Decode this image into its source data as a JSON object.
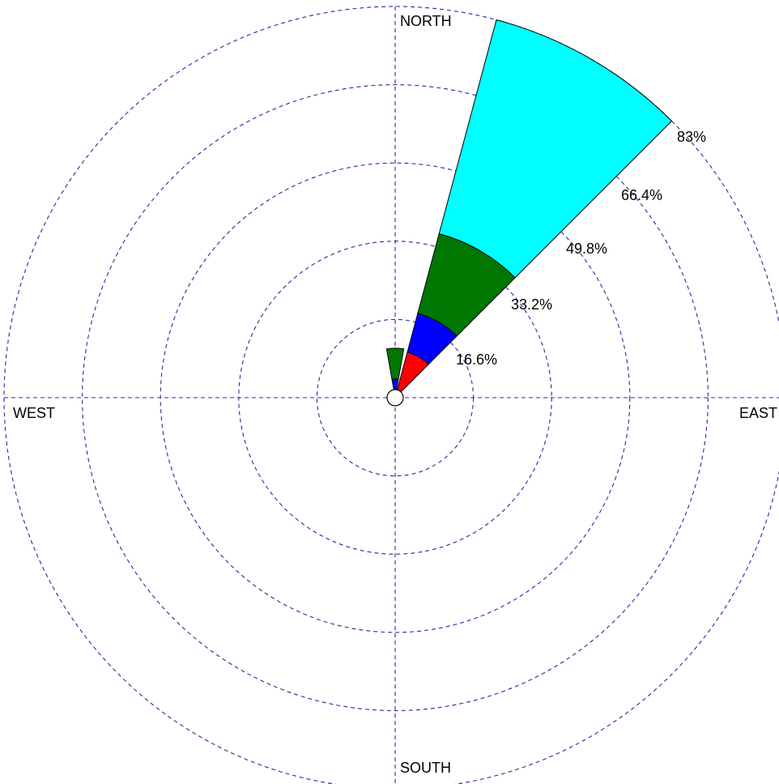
{
  "chart_data": {
    "type": "windrose",
    "title": "",
    "max_percent": 83,
    "ring_labels": [
      "16.6%",
      "33.2%",
      "49.8%",
      "66.4%",
      "83%"
    ],
    "ring_values": [
      16.6,
      33.2,
      49.8,
      66.4,
      83
    ],
    "direction_labels": {
      "north": "NORTH",
      "east": "EAST",
      "south": "SOUTH",
      "west": "WEST"
    },
    "grid": true,
    "sectors": [
      {
        "direction_deg": 0,
        "half_width_deg": 10,
        "segments": [
          {
            "color": "#0000ff",
            "from": 0,
            "to": 4.0
          },
          {
            "color": "#007700",
            "from": 4.0,
            "to": 10.5
          }
        ]
      },
      {
        "direction_deg": 30,
        "half_width_deg": 15,
        "segments": [
          {
            "color": "#ff0000",
            "from": 0,
            "to": 10.0
          },
          {
            "color": "#0000ff",
            "from": 10.0,
            "to": 18.5
          },
          {
            "color": "#007700",
            "from": 18.5,
            "to": 36.0
          },
          {
            "color": "#00ffff",
            "from": 36.0,
            "to": 83.0
          }
        ]
      }
    ]
  }
}
